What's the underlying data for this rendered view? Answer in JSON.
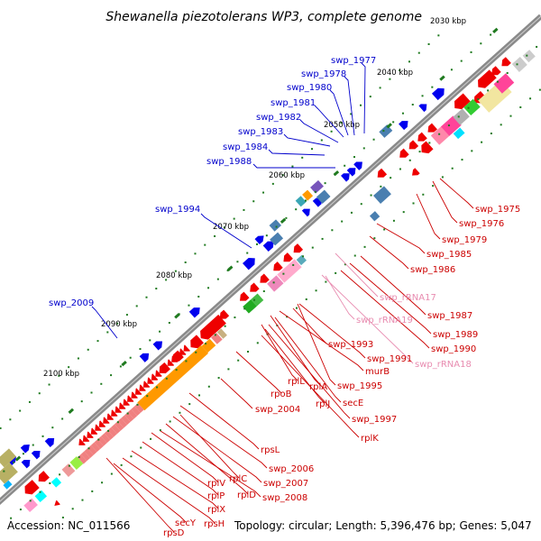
{
  "title": "Shewanella piezotolerans WP3, complete genome",
  "footer": {
    "accession": "Accession: NC_011566",
    "stats": "Topology: circular; Length: 5,396,476 bp; Genes: 5,047"
  },
  "colors": {
    "backbone": "#909090",
    "tick_dot": "#1f7a1f",
    "forward_feature": "#0000ee",
    "reverse_feature": "#ee0000",
    "label_forward": "#0000cc",
    "label_reverse": "#cc0000",
    "label_rna": "#e88cb0"
  },
  "kbp_ticks": [
    "2030 kbp",
    "2040 kbp",
    "2050 kbp",
    "2060 kbp",
    "2070 kbp",
    "2080 kbp",
    "2090 kbp",
    "2100 kbp"
  ],
  "upper_labels": [
    "swp_1977",
    "swp_1978",
    "swp_1980",
    "swp_1981",
    "swp_1982",
    "swp_1983",
    "swp_1984",
    "swp_1988",
    "swp_1994",
    "swp_2009"
  ],
  "lower_labels": [
    "swp_1975",
    "swp_1976",
    "swp_1979",
    "swp_1985",
    "swp_1986",
    "swp_rRNA17",
    "swp_1987",
    "swp_rRNA19",
    "swp_1989",
    "swp_1990",
    "swp_rRNA18",
    "swp_1993",
    "swp_1991",
    "murB",
    "swp_1995",
    "rplA",
    "secE",
    "rplL",
    "rplJ",
    "swp_1997",
    "rplK",
    "rpoB",
    "swp_2004",
    "rpsL",
    "swp_2006",
    "rplC",
    "swp_2007",
    "rplD",
    "swp_2008",
    "rplV",
    "rplP",
    "rplX",
    "rpsH",
    "secY",
    "rpsD"
  ]
}
